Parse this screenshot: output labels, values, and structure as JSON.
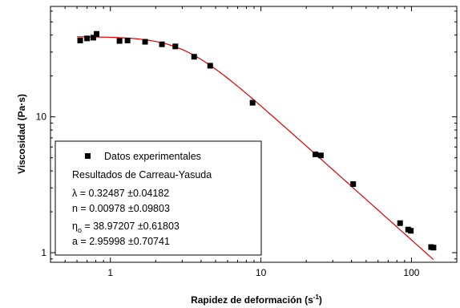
{
  "chart_data": {
    "type": "scatter",
    "xscale": "log",
    "yscale": "log",
    "xlim": [
      0.4,
      200
    ],
    "ylim": [
      0.85,
      65
    ],
    "xticks": [
      1,
      10,
      100
    ],
    "xtick_labels": [
      "1",
      "10",
      "100"
    ],
    "yticks": [
      1,
      10
    ],
    "ytick_labels": [
      "1",
      "10"
    ],
    "xlabel": {
      "main": "Rapidez de deformación (s",
      "sup": "-1",
      "end": ")"
    },
    "ylabel": "Viscosidad  (Pa·s)",
    "legend_position": "bottom-left",
    "colors": {
      "points": "#000000",
      "fit": "#dd0000",
      "axes": "#000000"
    },
    "series": [
      {
        "name": "Datos experimentales",
        "kind": "scatter",
        "x": [
          0.63,
          0.7,
          0.77,
          0.81,
          1.15,
          1.3,
          1.7,
          2.2,
          2.7,
          3.6,
          4.6,
          8.8,
          23.0,
          25.0,
          41.0,
          84.0,
          95.0,
          99.0,
          135.0,
          140.0
        ],
        "y": [
          36.5,
          37.8,
          38.3,
          40.8,
          36.2,
          36.5,
          35.7,
          34.2,
          33.0,
          27.7,
          23.8,
          12.7,
          5.3,
          5.2,
          3.2,
          1.65,
          1.48,
          1.45,
          1.1,
          1.09
        ]
      },
      {
        "name": "Resultados de Carreau-Yasuda",
        "kind": "line",
        "params": {
          "lambda": 0.32487,
          "n": 0.00978,
          "eta0": 38.97207,
          "a": 2.95998
        },
        "x_range": [
          0.6,
          140
        ]
      }
    ],
    "legend": {
      "entries": [
        "Datos experimentales",
        "Resultados de Carreau-Yasuda"
      ],
      "params": [
        {
          "symbol": "λ",
          "sub": "",
          "text": " = 0.32487 ±0.04182"
        },
        {
          "symbol": "n",
          "sub": "",
          "text": " = 0.00978 ±0.09803"
        },
        {
          "symbol": "η",
          "sub": "o",
          "text": " = 38.97207 ±0.61803"
        },
        {
          "symbol": "a",
          "sub": "",
          "text": " = 2.95998 ±0.70741"
        }
      ]
    }
  }
}
